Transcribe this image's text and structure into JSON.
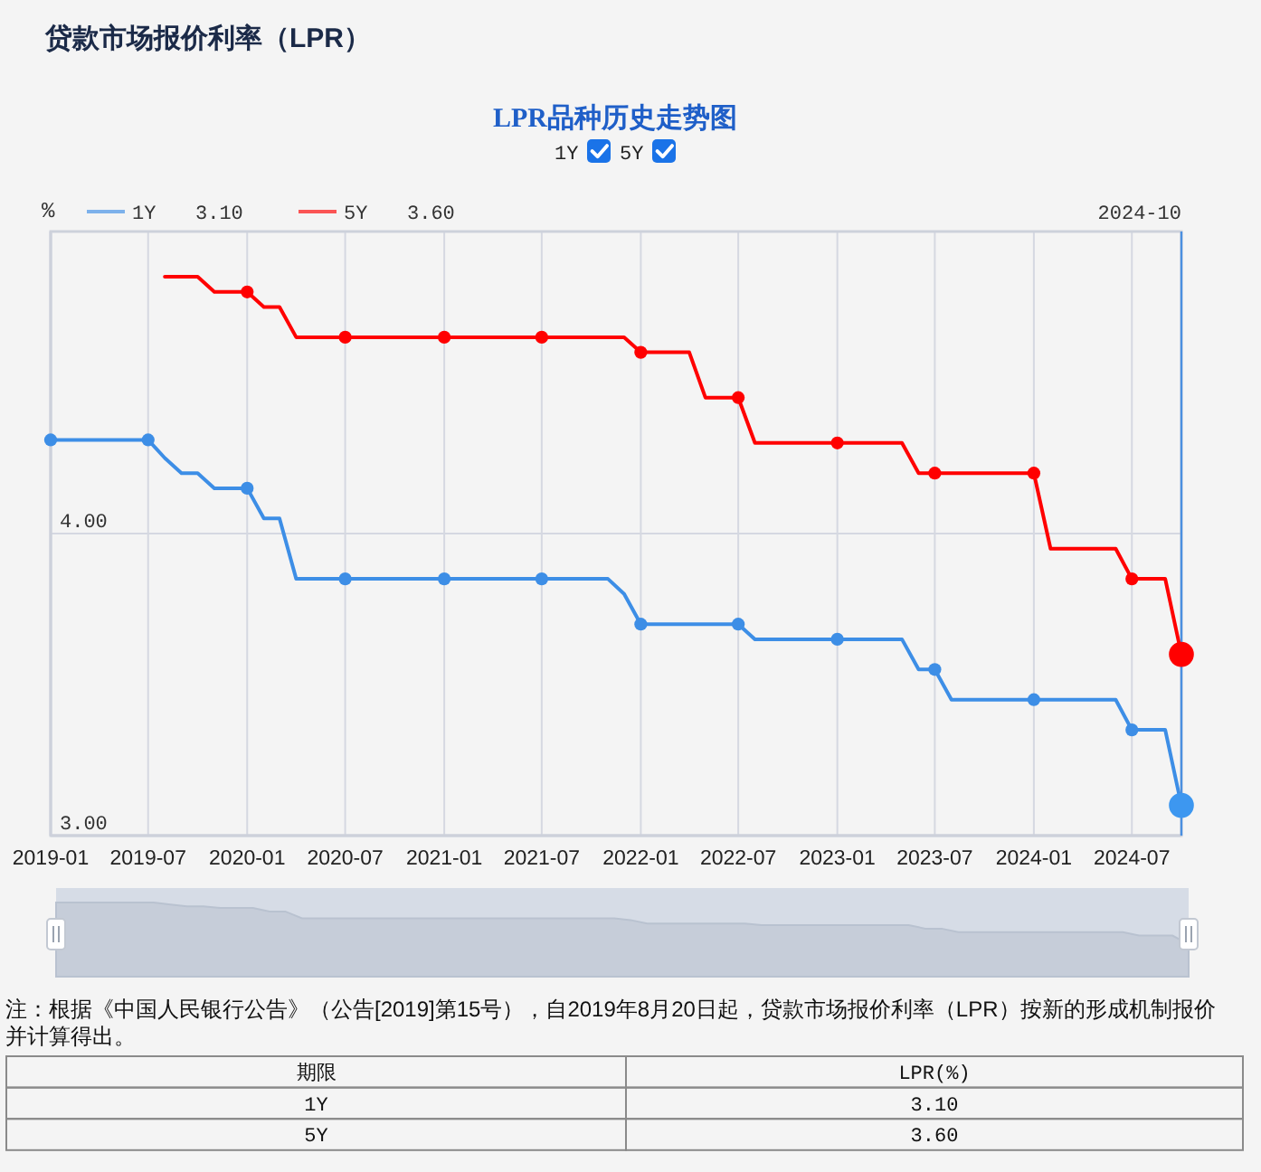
{
  "chart_data": {
    "type": "line",
    "title": "贷款市场报价利率（LPR）",
    "subtitle": "LPR品种历史走势图",
    "ylabel": "%",
    "x": [
      "2019-01",
      "2019-02",
      "2019-03",
      "2019-04",
      "2019-05",
      "2019-06",
      "2019-07",
      "2019-08",
      "2019-09",
      "2019-10",
      "2019-11",
      "2019-12",
      "2020-01",
      "2020-02",
      "2020-03",
      "2020-04",
      "2020-05",
      "2020-06",
      "2020-07",
      "2020-08",
      "2020-09",
      "2020-10",
      "2020-11",
      "2020-12",
      "2021-01",
      "2021-02",
      "2021-03",
      "2021-04",
      "2021-05",
      "2021-06",
      "2021-07",
      "2021-08",
      "2021-09",
      "2021-10",
      "2021-11",
      "2021-12",
      "2022-01",
      "2022-02",
      "2022-03",
      "2022-04",
      "2022-05",
      "2022-06",
      "2022-07",
      "2022-08",
      "2022-09",
      "2022-10",
      "2022-11",
      "2022-12",
      "2023-01",
      "2023-02",
      "2023-03",
      "2023-04",
      "2023-05",
      "2023-06",
      "2023-07",
      "2023-08",
      "2023-09",
      "2023-10",
      "2023-11",
      "2023-12",
      "2024-01",
      "2024-02",
      "2024-03",
      "2024-04",
      "2024-05",
      "2024-06",
      "2024-07",
      "2024-08",
      "2024-09",
      "2024-10"
    ],
    "xlim": [
      "2019-01",
      "2024-10"
    ],
    "xticks": [
      "2019-01",
      "2019-07",
      "2020-01",
      "2020-07",
      "2021-01",
      "2021-07",
      "2022-01",
      "2022-07",
      "2023-01",
      "2023-07",
      "2024-01",
      "2024-07"
    ],
    "ylim": [
      3,
      5
    ],
    "yticks": [
      {
        "value": 3,
        "label": "3.00"
      },
      {
        "value": 4,
        "label": "4.00"
      }
    ],
    "grid": true,
    "legend": "top left",
    "ref_lines": [
      {
        "axis": "x",
        "value": "2024-10",
        "label": "2024-10",
        "color": "#4a8fe0"
      }
    ],
    "series": [
      {
        "name": "1Y",
        "color": "#3d8ee6",
        "values": [
          4.31,
          4.31,
          4.31,
          4.31,
          4.31,
          4.31,
          4.31,
          4.25,
          4.2,
          4.2,
          4.15,
          4.15,
          4.15,
          4.05,
          4.05,
          3.85,
          3.85,
          3.85,
          3.85,
          3.85,
          3.85,
          3.85,
          3.85,
          3.85,
          3.85,
          3.85,
          3.85,
          3.85,
          3.85,
          3.85,
          3.85,
          3.85,
          3.85,
          3.85,
          3.85,
          3.8,
          3.7,
          3.7,
          3.7,
          3.7,
          3.7,
          3.7,
          3.7,
          3.65,
          3.65,
          3.65,
          3.65,
          3.65,
          3.65,
          3.65,
          3.65,
          3.65,
          3.65,
          3.55,
          3.55,
          3.45,
          3.45,
          3.45,
          3.45,
          3.45,
          3.45,
          3.45,
          3.45,
          3.45,
          3.45,
          3.45,
          3.35,
          3.35,
          3.35,
          3.1
        ]
      },
      {
        "name": "5Y",
        "color": "#ff0000",
        "values": [
          null,
          null,
          null,
          null,
          null,
          null,
          null,
          4.85,
          4.85,
          4.85,
          4.8,
          4.8,
          4.8,
          4.75,
          4.75,
          4.65,
          4.65,
          4.65,
          4.65,
          4.65,
          4.65,
          4.65,
          4.65,
          4.65,
          4.65,
          4.65,
          4.65,
          4.65,
          4.65,
          4.65,
          4.65,
          4.65,
          4.65,
          4.65,
          4.65,
          4.65,
          4.6,
          4.6,
          4.6,
          4.6,
          4.45,
          4.45,
          4.45,
          4.3,
          4.3,
          4.3,
          4.3,
          4.3,
          4.3,
          4.3,
          4.3,
          4.3,
          4.3,
          4.2,
          4.2,
          4.2,
          4.2,
          4.2,
          4.2,
          4.2,
          4.2,
          3.95,
          3.95,
          3.95,
          3.95,
          3.95,
          3.85,
          3.85,
          3.85,
          3.6
        ]
      },
      {
        "type": "scatter",
        "marker": "circle",
        "color": "#3d8ee6",
        "x": [
          "2019-01",
          "2019-07",
          "2020-01",
          "2020-07",
          "2021-01",
          "2021-07",
          "2022-01",
          "2022-07",
          "2023-01",
          "2023-07",
          "2024-01",
          "2024-07"
        ],
        "values": [
          4.31,
          4.31,
          4.15,
          3.85,
          3.85,
          3.85,
          3.7,
          3.7,
          3.65,
          3.55,
          3.45,
          3.35
        ]
      },
      {
        "type": "scatter",
        "marker": "circle",
        "color": "#ff0000",
        "x": [
          "2020-01",
          "2020-07",
          "2021-01",
          "2021-07",
          "2022-01",
          "2022-07",
          "2023-01",
          "2023-07",
          "2024-01",
          "2024-07"
        ],
        "values": [
          4.8,
          4.65,
          4.65,
          4.65,
          4.6,
          4.45,
          4.3,
          4.2,
          4.2,
          3.85
        ]
      },
      {
        "type": "scatter",
        "marker": "circle",
        "colors": [
          "#3d97f0",
          "#ff0000"
        ],
        "x": [
          "2024-10",
          "2024-10"
        ],
        "values": [
          3.1,
          3.6
        ]
      }
    ],
    "annotations": [
      "3.10",
      "3.60",
      "期限",
      "LPR(%)",
      "注：根据《中国人民银行公告》（公告[2019]第15号），自2019年8月20日起，贷款市场报价利率（LPR）按新的形成机制报价并计算得出。"
    ]
  }
}
